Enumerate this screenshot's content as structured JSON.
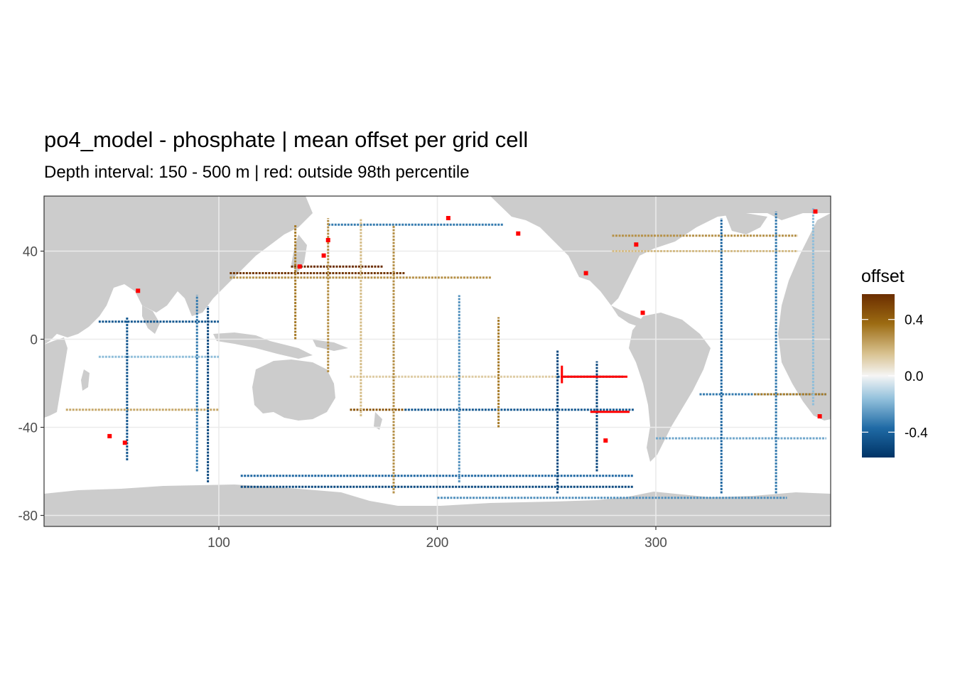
{
  "chart_data": {
    "type": "heatmap",
    "title": "po4_model - phosphate  | mean offset per grid cell",
    "subtitle": "Depth interval: 150 - 500 m | red: outside 98th percentile",
    "xlim": [
      20,
      380
    ],
    "ylim": [
      -85,
      65
    ],
    "x_ticks": [
      100,
      200,
      300
    ],
    "y_ticks": [
      40,
      0,
      -40,
      -80
    ],
    "grid": true,
    "land_color": "#cccccc",
    "ocean_color": "#ffffff",
    "outlier_color": "#ff0000",
    "legend": {
      "title": "offset",
      "placement": "right",
      "range": [
        -0.58,
        0.58
      ],
      "ticks": [
        0.4,
        0.0,
        -0.4
      ],
      "tick_labels": [
        "0.4",
        "0.0",
        "-0.4"
      ],
      "colors": [
        "#003366",
        "#1f6aa5",
        "#93c1dc",
        "#f5f5f5",
        "#d7c08d",
        "#9c6b12",
        "#6b2d00"
      ]
    },
    "transects": [
      {
        "type": "h",
        "lat": 30,
        "lon_from": 105,
        "lon_to": 185,
        "offset": 0.55
      },
      {
        "type": "h",
        "lat": 28,
        "lon_from": 105,
        "lon_to": 225,
        "offset": 0.3
      },
      {
        "type": "h",
        "lat": 33,
        "lon_from": 133,
        "lon_to": 175,
        "offset": 0.58
      },
      {
        "type": "h",
        "lat": 40,
        "lon_from": 280,
        "lon_to": 365,
        "offset": 0.2
      },
      {
        "type": "h",
        "lat": 47,
        "lon_from": 280,
        "lon_to": 365,
        "offset": 0.3
      },
      {
        "type": "h",
        "lat": 8,
        "lon_from": 45,
        "lon_to": 100,
        "offset": -0.45
      },
      {
        "type": "h",
        "lat": -8,
        "lon_from": 45,
        "lon_to": 100,
        "offset": -0.2
      },
      {
        "type": "h",
        "lat": -32,
        "lon_from": 30,
        "lon_to": 100,
        "offset": 0.25
      },
      {
        "type": "h",
        "lat": -32,
        "lon_from": 160,
        "lon_to": 185,
        "offset": 0.45
      },
      {
        "type": "h",
        "lat": -32,
        "lon_from": 185,
        "lon_to": 290,
        "offset": -0.45
      },
      {
        "type": "h",
        "lat": -17,
        "lon_from": 160,
        "lon_to": 255,
        "offset": 0.15
      },
      {
        "type": "h",
        "lat": -17,
        "lon_from": 255,
        "lon_to": 285,
        "offset": -0.5
      },
      {
        "type": "h",
        "lat": -62,
        "lon_from": 110,
        "lon_to": 290,
        "offset": -0.4
      },
      {
        "type": "h",
        "lat": -67,
        "lon_from": 110,
        "lon_to": 290,
        "offset": -0.5
      },
      {
        "type": "h",
        "lat": -72,
        "lon_from": 200,
        "lon_to": 360,
        "offset": -0.3
      },
      {
        "type": "h",
        "lat": -45,
        "lon_from": 300,
        "lon_to": 378,
        "offset": -0.25
      },
      {
        "type": "h",
        "lat": -25,
        "lon_from": 320,
        "lon_to": 378,
        "offset": -0.35
      },
      {
        "type": "h",
        "lat": -25,
        "lon_from": 345,
        "lon_to": 378,
        "offset": 0.35
      },
      {
        "type": "h",
        "lat": 52,
        "lon_from": 150,
        "lon_to": 230,
        "offset": -0.35
      },
      {
        "type": "v",
        "lon": 58,
        "lat_from": -55,
        "lat_to": 10,
        "offset": -0.45
      },
      {
        "type": "v",
        "lon": 90,
        "lat_from": -60,
        "lat_to": 20,
        "offset": -0.35
      },
      {
        "type": "v",
        "lon": 95,
        "lat_from": -65,
        "lat_to": 15,
        "offset": -0.5
      },
      {
        "type": "v",
        "lon": 135,
        "lat_from": 0,
        "lat_to": 52,
        "offset": 0.35
      },
      {
        "type": "v",
        "lon": 150,
        "lat_from": -15,
        "lat_to": 55,
        "offset": 0.3
      },
      {
        "type": "v",
        "lon": 165,
        "lat_from": -35,
        "lat_to": 55,
        "offset": 0.2
      },
      {
        "type": "v",
        "lon": 180,
        "lat_from": -70,
        "lat_to": 52,
        "offset": 0.3
      },
      {
        "type": "v",
        "lon": 210,
        "lat_from": -65,
        "lat_to": 20,
        "offset": -0.3
      },
      {
        "type": "v",
        "lon": 228,
        "lat_from": -40,
        "lat_to": 10,
        "offset": 0.35
      },
      {
        "type": "v",
        "lon": 255,
        "lat_from": -70,
        "lat_to": -5,
        "offset": -0.5
      },
      {
        "type": "v",
        "lon": 273,
        "lat_from": -60,
        "lat_to": -10,
        "offset": -0.5
      },
      {
        "type": "v",
        "lon": 330,
        "lat_from": -70,
        "lat_to": 55,
        "offset": -0.4
      },
      {
        "type": "v",
        "lon": 355,
        "lat_from": -70,
        "lat_to": 58,
        "offset": -0.35
      },
      {
        "type": "v",
        "lon": 372,
        "lat_from": -30,
        "lat_to": 60,
        "offset": -0.2
      }
    ],
    "outliers": [
      {
        "lon": 137,
        "lat": 33
      },
      {
        "lon": 148,
        "lat": 38
      },
      {
        "lon": 150,
        "lat": 45
      },
      {
        "lon": 63,
        "lat": 22
      },
      {
        "lon": 50,
        "lat": -44
      },
      {
        "lon": 57,
        "lat": -47
      },
      {
        "lon": 205,
        "lat": 55
      },
      {
        "lon": 237,
        "lat": 48
      },
      {
        "lon": 291,
        "lat": 43
      },
      {
        "lon": 268,
        "lat": 30
      },
      {
        "lon": 294,
        "lat": 12
      },
      {
        "lon": 373,
        "lat": 58
      },
      {
        "lon": 375,
        "lat": -35
      },
      {
        "lon": 277,
        "lat": -46
      }
    ],
    "outlier_segments": [
      {
        "type": "h",
        "lat": -17,
        "lon_from": 257,
        "lon_to": 287
      },
      {
        "type": "h",
        "lat": -33,
        "lon_from": 270,
        "lon_to": 288
      },
      {
        "type": "v",
        "lon": 257,
        "lat_from": -20,
        "lat_to": -12
      }
    ]
  }
}
